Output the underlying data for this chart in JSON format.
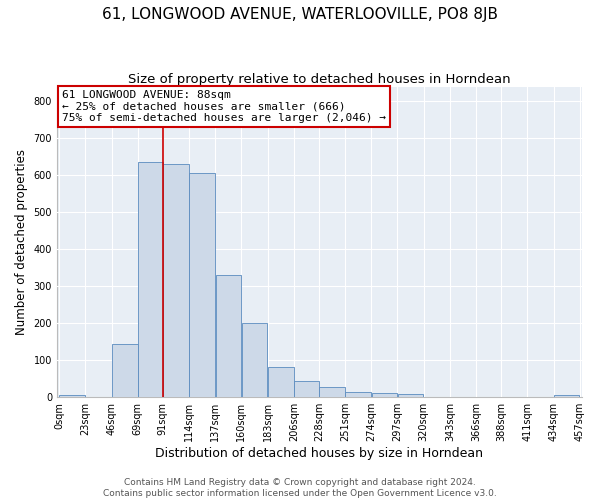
{
  "title": "61, LONGWOOD AVENUE, WATERLOOVILLE, PO8 8JB",
  "subtitle": "Size of property relative to detached houses in Horndean",
  "xlabel": "Distribution of detached houses by size in Horndean",
  "ylabel": "Number of detached properties",
  "bar_color": "#cdd9e8",
  "bar_edge_color": "#5a8bbf",
  "background_color": "#e8eef5",
  "annotation_box_color": "#cc0000",
  "vline_color": "#cc0000",
  "vline_x": 91,
  "annotation_lines": [
    "61 LONGWOOD AVENUE: 88sqm",
    "← 25% of detached houses are smaller (666)",
    "75% of semi-detached houses are larger (2,046) →"
  ],
  "bin_edges": [
    0,
    23,
    46,
    69,
    91,
    114,
    137,
    160,
    183,
    206,
    228,
    251,
    274,
    297,
    320,
    343,
    366,
    388,
    411,
    434,
    457
  ],
  "bin_heights": [
    5,
    0,
    143,
    636,
    630,
    607,
    330,
    200,
    83,
    43,
    27,
    13,
    12,
    8,
    0,
    0,
    0,
    0,
    0,
    5
  ],
  "tick_labels": [
    "0sqm",
    "23sqm",
    "46sqm",
    "69sqm",
    "91sqm",
    "114sqm",
    "137sqm",
    "160sqm",
    "183sqm",
    "206sqm",
    "228sqm",
    "251sqm",
    "274sqm",
    "297sqm",
    "320sqm",
    "343sqm",
    "366sqm",
    "388sqm",
    "411sqm",
    "434sqm",
    "457sqm"
  ],
  "ylim": [
    0,
    840
  ],
  "yticks": [
    0,
    100,
    200,
    300,
    400,
    500,
    600,
    700,
    800
  ],
  "footer_lines": [
    "Contains HM Land Registry data © Crown copyright and database right 2024.",
    "Contains public sector information licensed under the Open Government Licence v3.0."
  ],
  "title_fontsize": 11,
  "subtitle_fontsize": 9.5,
  "xlabel_fontsize": 9,
  "ylabel_fontsize": 8.5,
  "tick_fontsize": 7,
  "annotation_fontsize": 8,
  "footer_fontsize": 6.5
}
